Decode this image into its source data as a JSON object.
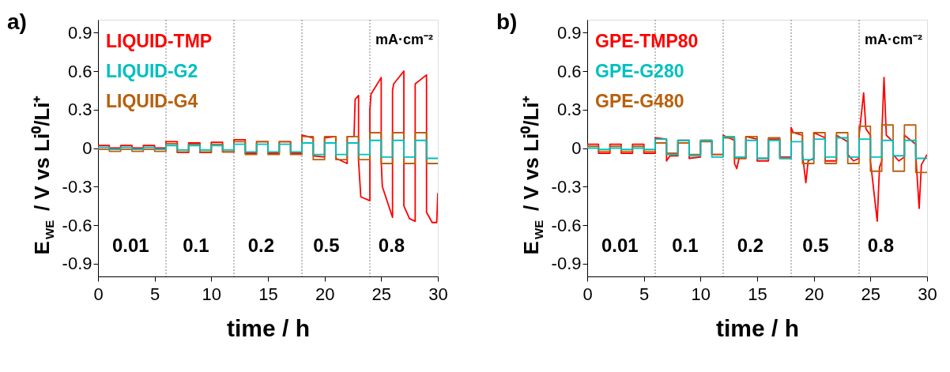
{
  "chart_data": [
    {
      "type": "line",
      "title": "a)",
      "xlabel": "time / h",
      "ylabel": "E$_{WE}$ / V vs Li⁰/Li⁺",
      "xlim": [
        0,
        30
      ],
      "ylim": [
        -1.0,
        1.0
      ],
      "xticks": [
        0,
        5,
        10,
        15,
        20,
        25,
        30
      ],
      "yticks": [
        -0.9,
        -0.6,
        -0.3,
        0,
        0.3,
        0.6,
        0.9
      ],
      "grid": false,
      "x": [
        0,
        1,
        1,
        2,
        2,
        3,
        3,
        4,
        4,
        5,
        5,
        6,
        6,
        7,
        7,
        8,
        8,
        9,
        9,
        10,
        10,
        11,
        11,
        12,
        12,
        13,
        13,
        14,
        14,
        15,
        15,
        16,
        16,
        17,
        17,
        18,
        18,
        19,
        19,
        20,
        20,
        21,
        21,
        22,
        22,
        23,
        23,
        24,
        24,
        25,
        25,
        26,
        26,
        27,
        27,
        28,
        28,
        29,
        29,
        30
      ],
      "series": [
        {
          "name": "LIQUID-TMP",
          "color": "#ff0000",
          "x": [
            0,
            1,
            1,
            2,
            2,
            3,
            3,
            4,
            4,
            5,
            5,
            6,
            6,
            7,
            7,
            8,
            8,
            9,
            9,
            10,
            10,
            11,
            11,
            12,
            12,
            13,
            13,
            14,
            14,
            15,
            15,
            16,
            16,
            17,
            17,
            18,
            18,
            19,
            19,
            20,
            20,
            21,
            21,
            22,
            22,
            22.6,
            22.7,
            23,
            23,
            23.2,
            24,
            24,
            24.1,
            25,
            25,
            25.1,
            26,
            26,
            26.1,
            27,
            27,
            27.5,
            28,
            28,
            29,
            29,
            29.5,
            29.9,
            30
          ],
          "values": [
            0.02,
            0.02,
            0,
            0,
            0.02,
            0.02,
            0,
            0,
            0.02,
            0.02,
            0,
            0,
            0.05,
            0.05,
            -0.035,
            -0.035,
            0.04,
            0.04,
            -0.035,
            -0.035,
            0.045,
            0.045,
            -0.03,
            -0.03,
            0.065,
            0.065,
            -0.04,
            -0.04,
            0.05,
            0.05,
            -0.04,
            -0.04,
            0.05,
            0.05,
            -0.04,
            -0.04,
            0.1,
            0.08,
            -0.06,
            -0.07,
            0.08,
            0.09,
            -0.08,
            -0.12,
            0.09,
            0.09,
            0.38,
            0.41,
            -0.1,
            -0.38,
            -0.41,
            0.3,
            0.42,
            0.55,
            -0.1,
            -0.3,
            -0.54,
            0.45,
            0.5,
            0.6,
            -0.45,
            -0.55,
            -0.57,
            0.5,
            0.57,
            -0.5,
            -0.58,
            -0.58,
            -0.35
          ]
        },
        {
          "name": "LIQUID-G2",
          "color": "#00c0c0",
          "values": [
            0.005,
            0.005,
            -0.01,
            -0.01,
            0.005,
            0.005,
            -0.01,
            -0.01,
            0.005,
            0.005,
            -0.01,
            -0.01,
            0.02,
            0.02,
            -0.015,
            -0.015,
            0.02,
            0.02,
            -0.015,
            -0.015,
            0.02,
            0.02,
            -0.015,
            -0.015,
            0.03,
            0.03,
            -0.03,
            -0.03,
            0.03,
            0.03,
            -0.03,
            -0.03,
            0.03,
            0.03,
            -0.03,
            -0.03,
            0.04,
            0.04,
            -0.05,
            -0.05,
            0.04,
            0.04,
            -0.05,
            -0.05,
            0.04,
            0.04,
            -0.05,
            -0.05,
            0.06,
            0.06,
            -0.07,
            -0.07,
            0.06,
            0.06,
            -0.07,
            -0.07,
            0.06,
            0.06,
            -0.08,
            -0.08
          ]
        },
        {
          "name": "LIQUID-G4",
          "color": "#b8600c",
          "values": [
            -0.01,
            -0.01,
            -0.025,
            -0.025,
            -0.01,
            -0.01,
            -0.025,
            -0.025,
            -0.01,
            -0.01,
            -0.025,
            -0.025,
            0.035,
            0.035,
            -0.03,
            -0.03,
            0.03,
            0.03,
            -0.03,
            -0.03,
            0.03,
            0.03,
            -0.03,
            -0.03,
            0.05,
            0.05,
            -0.05,
            -0.05,
            0.05,
            0.05,
            -0.05,
            -0.05,
            0.05,
            0.05,
            -0.05,
            -0.05,
            0.09,
            0.09,
            -0.09,
            -0.09,
            0.09,
            0.09,
            -0.09,
            -0.09,
            0.09,
            0.09,
            -0.09,
            -0.09,
            0.12,
            0.12,
            -0.12,
            -0.12,
            0.12,
            0.12,
            -0.12,
            -0.12,
            0.12,
            0.12,
            -0.12,
            -0.12
          ]
        }
      ],
      "ref_lines": [
        {
          "axis": "x",
          "value": 6,
          "color": "#808080",
          "line_style": "dotted"
        },
        {
          "axis": "x",
          "value": 12,
          "color": "#808080",
          "line_style": "dotted"
        },
        {
          "axis": "x",
          "value": 18,
          "color": "#808080",
          "line_style": "dotted"
        },
        {
          "axis": "x",
          "value": 24,
          "color": "#808080",
          "line_style": "dotted"
        }
      ],
      "annotations": [
        "mA·cm⁻²",
        "0.01",
        "0.1",
        "0.2",
        "0.5",
        "0.8"
      ]
    },
    {
      "type": "line",
      "title": "b)",
      "xlabel": "time / h",
      "ylabel": "E$_{WE}$ / V vs Li⁰/Li⁺",
      "xlim": [
        0,
        30
      ],
      "ylim": [
        -1.0,
        1.0
      ],
      "xticks": [
        0,
        5,
        10,
        15,
        20,
        25,
        30
      ],
      "yticks": [
        -0.9,
        -0.6,
        -0.3,
        0,
        0.3,
        0.6,
        0.9
      ],
      "grid": false,
      "x": [
        0,
        1,
        1,
        2,
        2,
        3,
        3,
        4,
        4,
        5,
        5,
        6,
        6,
        7,
        7,
        8,
        8,
        9,
        9,
        10,
        10,
        11,
        11,
        12,
        12,
        13,
        13,
        14,
        14,
        15,
        15,
        16,
        16,
        17,
        17,
        18,
        18,
        19,
        19,
        20,
        20,
        21,
        21,
        22,
        22,
        23,
        23,
        24,
        24,
        25,
        25,
        26,
        26,
        27,
        27,
        28,
        28,
        29,
        29,
        30
      ],
      "series": [
        {
          "name": "GPE-TMP80",
          "color": "#ff0000",
          "x": [
            0,
            1,
            1,
            2,
            2,
            3,
            3,
            4,
            4,
            5,
            5,
            6,
            6,
            7,
            7,
            7.3,
            8,
            8,
            9,
            9,
            10,
            10,
            11,
            11,
            12,
            12,
            13,
            13,
            13.2,
            13.4,
            14,
            14,
            15,
            15,
            16,
            16,
            17,
            17,
            18,
            18,
            18.2,
            19,
            19,
            19.3,
            19.5,
            20,
            20,
            21,
            21,
            22,
            22,
            23,
            23,
            23.5,
            24,
            24,
            24.4,
            24.6,
            25,
            25,
            25.6,
            25.8,
            26,
            26,
            26.2,
            26.4,
            27,
            27,
            27.5,
            28,
            28,
            29,
            29,
            29.3,
            29.5,
            30
          ],
          "values": [
            0.03,
            0.03,
            -0.04,
            -0.04,
            0.03,
            0.03,
            -0.04,
            -0.04,
            0.03,
            0.03,
            -0.04,
            -0.04,
            0.08,
            0.07,
            -0.1,
            -0.06,
            -0.06,
            0.06,
            0.06,
            -0.08,
            -0.07,
            0.06,
            0.06,
            -0.05,
            -0.05,
            0.1,
            0.06,
            -0.12,
            -0.16,
            -0.08,
            -0.08,
            0.09,
            0.07,
            -0.1,
            -0.1,
            0.07,
            0.07,
            -0.07,
            -0.07,
            0.16,
            0.12,
            0.1,
            -0.05,
            -0.27,
            -0.1,
            -0.08,
            0.12,
            0.08,
            -0.1,
            -0.1,
            0.1,
            0.05,
            -0.05,
            -0.1,
            -0.08,
            0.1,
            0.43,
            0.15,
            0.1,
            -0.1,
            -0.57,
            -0.15,
            -0.1,
            0.1,
            0.55,
            0.1,
            0.05,
            -0.05,
            -0.1,
            -0.07,
            0.1,
            0.03,
            -0.05,
            -0.47,
            -0.13,
            -0.05
          ]
        },
        {
          "name": "GPE-G280",
          "color": "#00c0c0",
          "values": [
            0,
            0,
            -0.01,
            -0.01,
            0,
            0,
            -0.01,
            -0.01,
            0,
            0,
            -0.01,
            -0.01,
            0.07,
            0.07,
            -0.05,
            -0.05,
            0.06,
            0.06,
            -0.06,
            -0.06,
            0.06,
            0.06,
            -0.07,
            -0.07,
            0.09,
            0.09,
            -0.07,
            -0.07,
            0.06,
            0.06,
            -0.08,
            -0.08,
            0.06,
            0.06,
            -0.08,
            -0.08,
            0.05,
            0.05,
            -0.09,
            -0.09,
            0.07,
            0.07,
            -0.07,
            -0.07,
            0.08,
            0.08,
            -0.07,
            -0.07,
            0.07,
            0.07,
            -0.07,
            -0.07,
            0.06,
            0.06,
            -0.06,
            -0.06,
            0.06,
            0.06,
            -0.08,
            -0.08
          ]
        },
        {
          "name": "GPE-G480",
          "color": "#b8600c",
          "values": [
            0.015,
            0.015,
            -0.025,
            -0.025,
            0.015,
            0.015,
            -0.025,
            -0.025,
            0.015,
            0.015,
            -0.025,
            -0.025,
            0.04,
            0.04,
            -0.04,
            -0.04,
            0.04,
            0.04,
            -0.05,
            -0.05,
            0.05,
            0.05,
            -0.05,
            -0.05,
            0.08,
            0.08,
            -0.08,
            -0.08,
            0.09,
            0.09,
            -0.08,
            -0.08,
            0.08,
            0.08,
            -0.08,
            -0.08,
            0.12,
            0.12,
            -0.12,
            -0.12,
            0.12,
            0.12,
            -0.12,
            -0.12,
            0.12,
            0.12,
            -0.12,
            -0.12,
            0.17,
            0.17,
            -0.18,
            -0.18,
            0.18,
            0.18,
            -0.18,
            -0.18,
            0.18,
            0.18,
            -0.19,
            -0.19
          ]
        }
      ],
      "ref_lines": [
        {
          "axis": "x",
          "value": 6,
          "color": "#808080",
          "line_style": "dotted"
        },
        {
          "axis": "x",
          "value": 12,
          "color": "#808080",
          "line_style": "dotted"
        },
        {
          "axis": "x",
          "value": 18,
          "color": "#808080",
          "line_style": "dotted"
        },
        {
          "axis": "x",
          "value": 24,
          "color": "#808080",
          "line_style": "dotted"
        }
      ],
      "annotations": [
        "mA·cm⁻²",
        "0.01",
        "0.1",
        "0.2",
        "0.5",
        "0.8"
      ]
    }
  ]
}
